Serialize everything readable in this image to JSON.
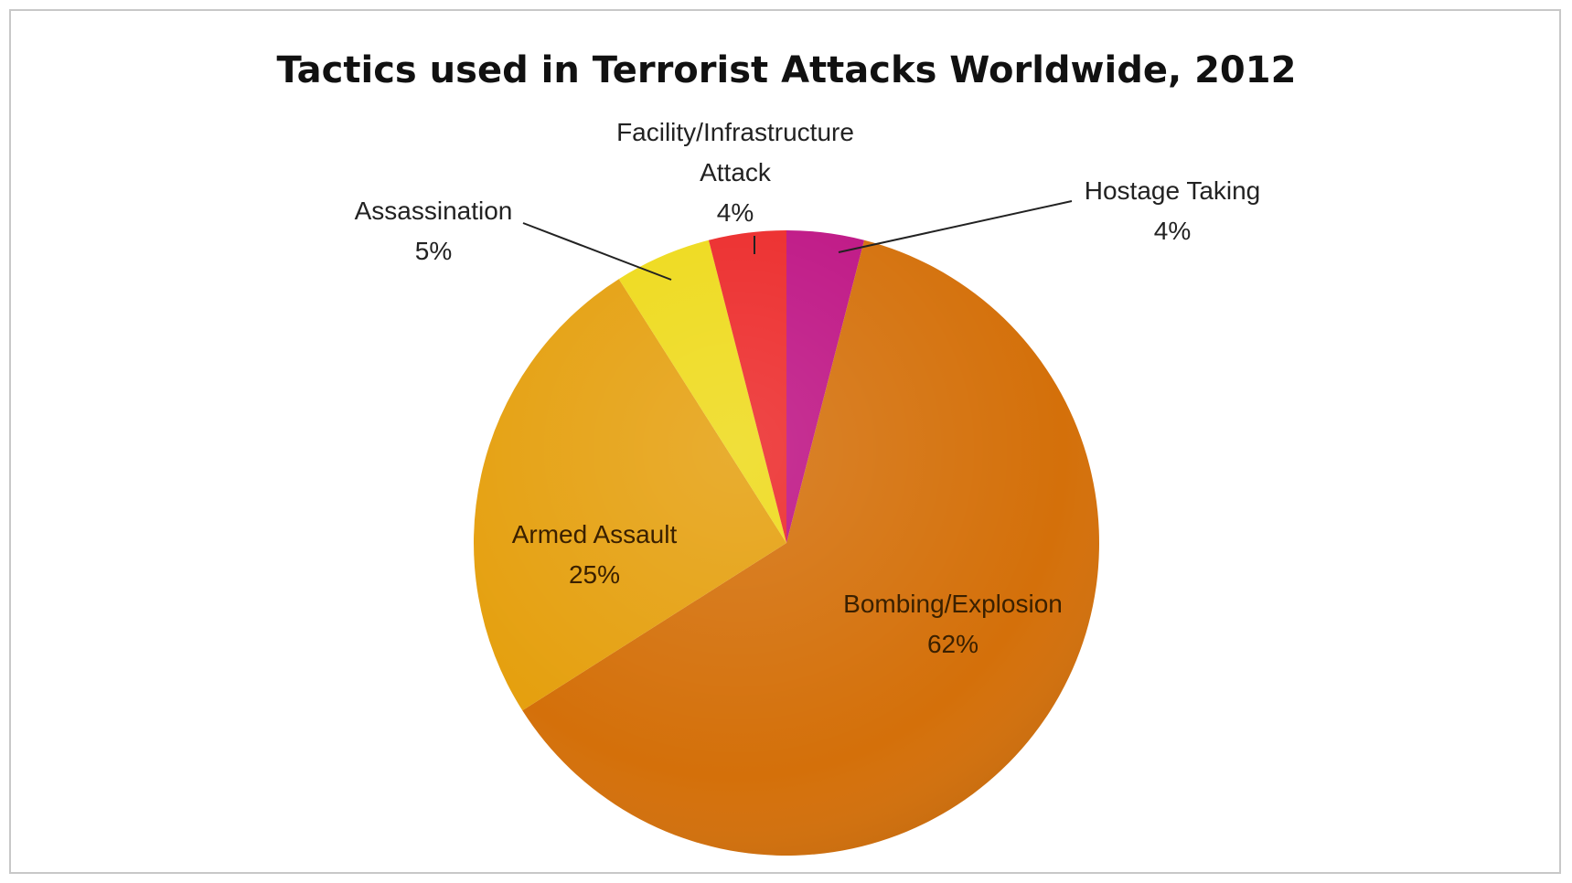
{
  "chart_data": {
    "type": "pie",
    "title": "Tactics used in Terrorist Attacks Worldwide, 2012",
    "slices": [
      {
        "label": "Bombing/Explosion",
        "value": 62,
        "pct_label": "62%",
        "color": "#D4700A"
      },
      {
        "label": "Armed Assault",
        "value": 25,
        "pct_label": "25%",
        "color": "#E5A00F"
      },
      {
        "label": "Assassination",
        "value": 5,
        "pct_label": "5%",
        "color": "#EEDA1A"
      },
      {
        "label": "Facility/Infrastructure Attack",
        "label_lines": [
          "Facility/Infrastructure",
          "Attack"
        ],
        "value": 4,
        "pct_label": "4%",
        "color": "#EC2A2A"
      },
      {
        "label": "Hostage Taking",
        "value": 4,
        "pct_label": "4%",
        "color": "#BE1484"
      }
    ]
  }
}
